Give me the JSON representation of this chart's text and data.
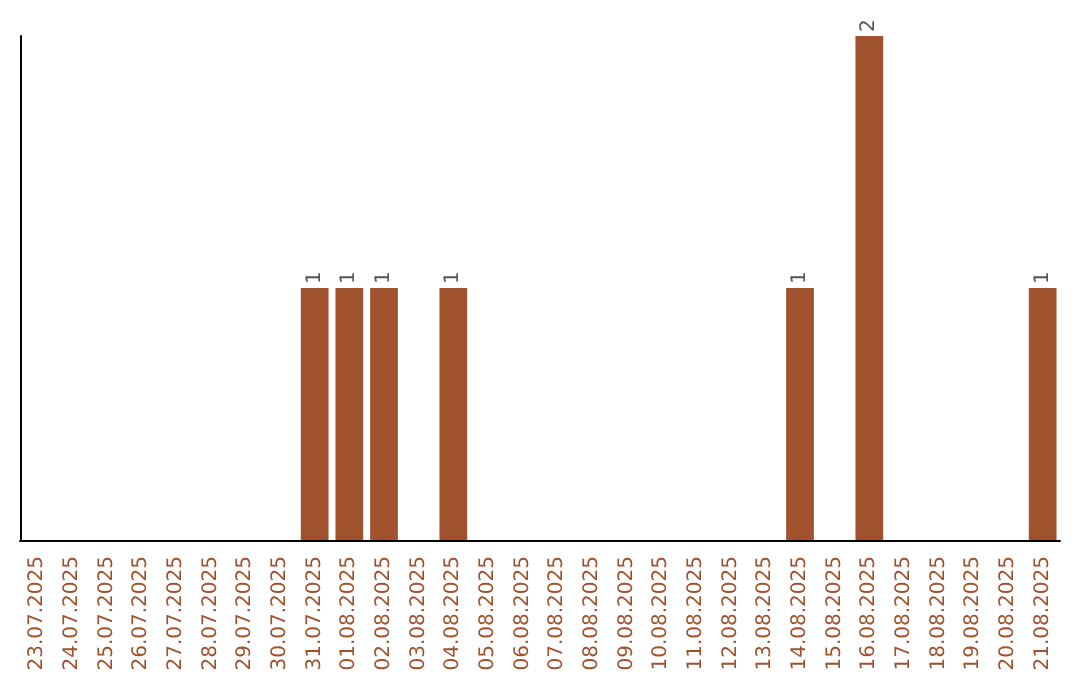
{
  "chart_data": {
    "type": "bar",
    "categories": [
      "23.07.2025",
      "24.07.2025",
      "25.07.2025",
      "26.07.2025",
      "27.07.2025",
      "28.07.2025",
      "29.07.2025",
      "30.07.2025",
      "31.07.2025",
      "01.08.2025",
      "02.08.2025",
      "03.08.2025",
      "04.08.2025",
      "05.08.2025",
      "06.08.2025",
      "07.08.2025",
      "08.08.2025",
      "09.08.2025",
      "10.08.2025",
      "11.08.2025",
      "12.08.2025",
      "13.08.2025",
      "14.08.2025",
      "15.08.2025",
      "16.08.2025",
      "17.08.2025",
      "18.08.2025",
      "19.08.2025",
      "20.08.2025",
      "21.08.2025"
    ],
    "values": [
      0,
      0,
      0,
      0,
      0,
      0,
      0,
      0,
      1,
      1,
      1,
      0,
      1,
      0,
      0,
      0,
      0,
      0,
      0,
      0,
      0,
      0,
      1,
      0,
      2,
      0,
      0,
      0,
      0,
      1
    ],
    "value_labels": [
      null,
      null,
      null,
      null,
      null,
      null,
      null,
      null,
      "1",
      "1",
      "1",
      null,
      "1",
      null,
      null,
      null,
      null,
      null,
      null,
      null,
      null,
      null,
      "1",
      null,
      "2",
      null,
      null,
      null,
      null,
      "1"
    ],
    "color": "#a0522d",
    "tick_labels": "x"
  }
}
